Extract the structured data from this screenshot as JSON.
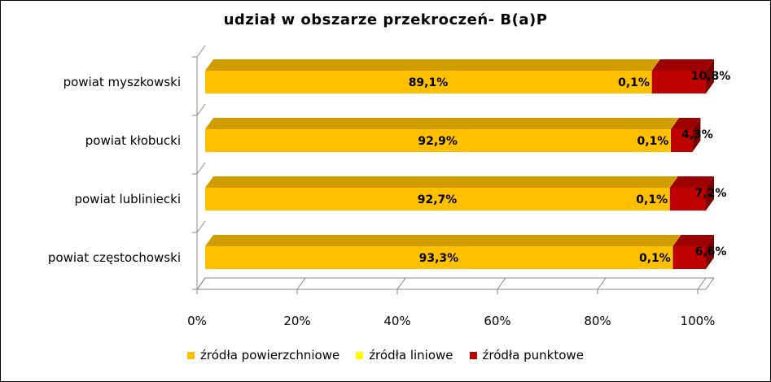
{
  "chart_data": {
    "type": "bar",
    "orientation": "horizontal",
    "stacked": "percent",
    "title": "udział  w obszarze przekroczeń- B(a)P",
    "categories": [
      "powiat myszkowski",
      "powiat kłobucki",
      "powiat lubliniecki",
      "powiat częstochowski"
    ],
    "series": [
      {
        "name": "źródła powierzchniowe",
        "color": "#FFC000",
        "values": [
          89.1,
          92.9,
          92.7,
          93.3
        ],
        "labels": [
          "89,1%",
          "92,9%",
          "92,7%",
          "93,3%"
        ]
      },
      {
        "name": "źródła liniowe",
        "color": "#FFFF00",
        "values": [
          0.1,
          0.1,
          0.1,
          0.1
        ],
        "labels": [
          "0,1%",
          "0,1%",
          "0,1%",
          "0,1%"
        ]
      },
      {
        "name": "źródła punktowe",
        "color": "#C00000",
        "values": [
          10.8,
          4.3,
          7.2,
          6.6
        ],
        "labels": [
          "10,8%",
          "4,3%",
          "7,2%",
          "6,6%"
        ]
      }
    ],
    "x_ticks": [
      "0%",
      "20%",
      "40%",
      "60%",
      "80%",
      "100%"
    ],
    "xlim": [
      0,
      100
    ],
    "legend_position": "bottom",
    "grid": false
  }
}
